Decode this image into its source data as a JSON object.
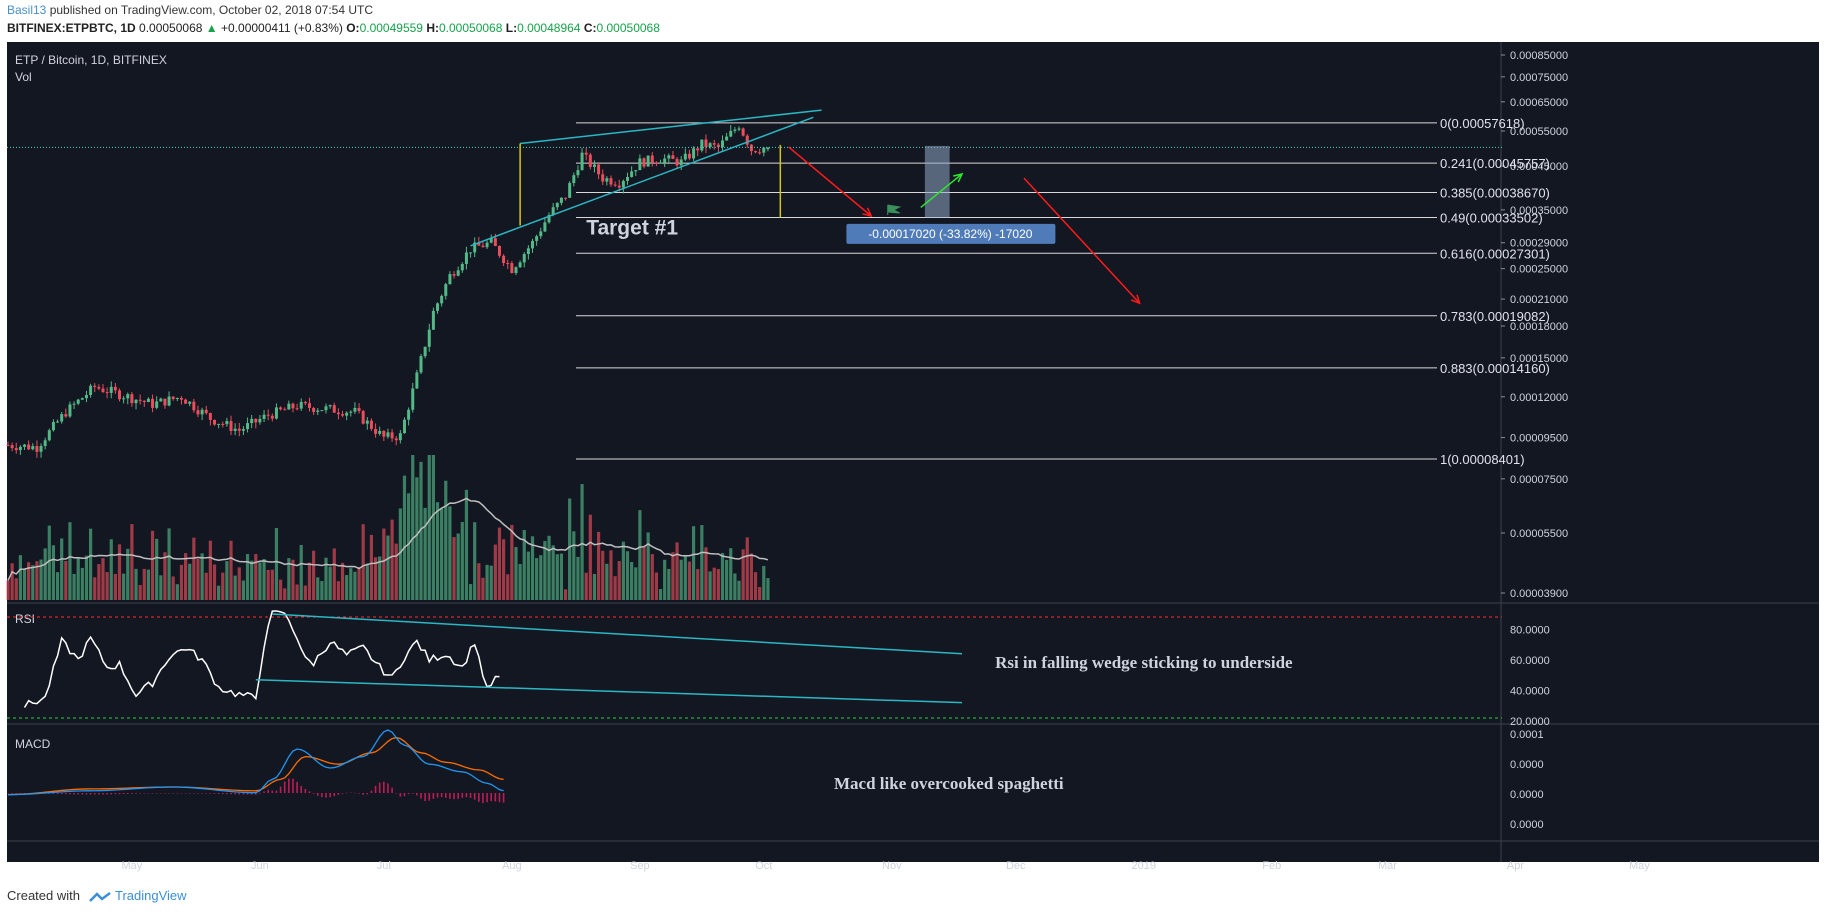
{
  "header": {
    "user": "Basil13",
    "published_text": " published on TradingView.com, October 02, 2018 07:54 UTC",
    "symbol": "BITFINEX:ETPBTC, 1D",
    "price": "0.00050068",
    "change_arrow": "▲",
    "change": "+0.00000411 (+0.83%)",
    "o_label": "O:",
    "o_value": "0.00049559",
    "h_label": "H:",
    "h_value": "0.00050068",
    "l_label": "L:",
    "l_value": "0.00048964",
    "c_label": "C:",
    "c_value": "0.00050068"
  },
  "footer": {
    "created_with": "Created with",
    "brand": "TradingView"
  },
  "colors": {
    "background": "#131722",
    "up": "#53b987",
    "down": "#eb4d5c",
    "wedge": "#2ab7c4",
    "fib": "#d9d9d9",
    "rsi": "#ffffff",
    "macd": "#2196f3",
    "signal": "#ff6d00",
    "projection": "#8fa8c4",
    "arrow_down": "#ff1a1a",
    "arrow_up": "#2ee82e",
    "target_line": "#d6c319"
  },
  "chart_data": [
    {
      "type": "candlestick",
      "title": "ETP / Bitcoin, 1D, BITFINEX",
      "volume_label": "Vol",
      "ylabels": [
        "0.00085000",
        "0.00075000",
        "0.00065000",
        "0.00055000",
        "0.00045000",
        "0.00035000",
        "0.00029000",
        "0.00025000",
        "0.00021000",
        "0.00018000",
        "0.00015000",
        "0.00012000",
        "0.00009500",
        "0.00007500",
        "0.00005500",
        "0.00003900"
      ],
      "xlabels": [
        "May",
        "Jun",
        "Jul",
        "Aug",
        "Sep",
        "Oct",
        "Nov",
        "Dec",
        "2019",
        "Feb",
        "Mar",
        "Apr",
        "May"
      ],
      "close_path": [
        [
          "2018-04-01",
          9.1e-05
        ],
        [
          "2018-04-08",
          9e-05
        ],
        [
          "2018-04-15",
          0.00011
        ],
        [
          "2018-04-22",
          0.000127
        ],
        [
          "2018-04-29",
          0.000121
        ],
        [
          "2018-05-06",
          0.000115
        ],
        [
          "2018-05-13",
          0.00012
        ],
        [
          "2018-05-20",
          0.000106
        ],
        [
          "2018-05-27",
          9.9e-05
        ],
        [
          "2018-06-03",
          0.000108
        ],
        [
          "2018-06-10",
          0.000114
        ],
        [
          "2018-06-17",
          0.000112
        ],
        [
          "2018-06-24",
          0.00011
        ],
        [
          "2018-07-01",
          9.5e-05
        ],
        [
          "2018-07-05",
          9.6e-05
        ],
        [
          "2018-07-09",
          0.000135
        ],
        [
          "2018-07-13",
          0.000195
        ],
        [
          "2018-07-17",
          0.00024
        ],
        [
          "2018-07-22",
          0.00028
        ],
        [
          "2018-07-27",
          0.00029
        ],
        [
          "2018-08-01",
          0.00025
        ],
        [
          "2018-08-06",
          0.00029
        ],
        [
          "2018-08-10",
          0.00034
        ],
        [
          "2018-08-14",
          0.00038
        ],
        [
          "2018-08-18",
          0.00048
        ],
        [
          "2018-08-23",
          0.00042
        ],
        [
          "2018-08-27",
          0.00041
        ],
        [
          "2018-09-01",
          0.00046
        ],
        [
          "2018-09-06",
          0.00047
        ],
        [
          "2018-09-11",
          0.00046
        ],
        [
          "2018-09-16",
          0.00051
        ],
        [
          "2018-09-20",
          0.0005
        ],
        [
          "2018-09-25",
          0.00057
        ],
        [
          "2018-09-28",
          0.000495
        ],
        [
          "2018-10-02",
          0.000501
        ]
      ],
      "last_price": 0.00050068,
      "fibonacci": [
        {
          "level": "0",
          "label": "0(0.00057618)",
          "price": 0.00057618
        },
        {
          "level": "0.241",
          "label": "0.241(0.00045757)",
          "price": 0.00045757
        },
        {
          "level": "0.385",
          "label": "0.385(0.00038670)",
          "price": 0.0003867
        },
        {
          "level": "0.49",
          "label": "0.49(0.00033502)",
          "price": 0.00033502
        },
        {
          "level": "0.616",
          "label": "0.616(0.00027301)",
          "price": 0.00027301
        },
        {
          "level": "0.783",
          "label": "0.783(0.00019082)",
          "price": 0.00019082
        },
        {
          "level": "0.883",
          "label": "0.883(0.00014160)",
          "price": 0.0001416
        },
        {
          "level": "1",
          "label": "1(0.00008401)",
          "price": 8.401e-05
        }
      ],
      "annotations": {
        "target": "Target #1",
        "measure": "-0.00017020 (-33.82%) -17020"
      }
    },
    {
      "type": "line",
      "title": "RSI",
      "ylabels": [
        "80.0000",
        "60.0000",
        "40.0000",
        "20.0000"
      ],
      "ylim": [
        20,
        90
      ],
      "overbought": 88,
      "oversold": 22,
      "values": [
        [
          4,
          30
        ],
        [
          9,
          35
        ],
        [
          13,
          72
        ],
        [
          17,
          60
        ],
        [
          20,
          74
        ],
        [
          24,
          55
        ],
        [
          27,
          57
        ],
        [
          31,
          37
        ],
        [
          35,
          45
        ],
        [
          39,
          62
        ],
        [
          43,
          68
        ],
        [
          47,
          60
        ],
        [
          51,
          42
        ],
        [
          55,
          38
        ],
        [
          60,
          35
        ],
        [
          62,
          70
        ],
        [
          64,
          90
        ],
        [
          66,
          92
        ],
        [
          68,
          86
        ],
        [
          70,
          75
        ],
        [
          72,
          60
        ],
        [
          74,
          58
        ],
        [
          78,
          72
        ],
        [
          82,
          63
        ],
        [
          86,
          68
        ],
        [
          90,
          55
        ],
        [
          93,
          48
        ],
        [
          96,
          62
        ],
        [
          99,
          72
        ],
        [
          102,
          60
        ],
        [
          106,
          64
        ],
        [
          110,
          55
        ],
        [
          113,
          72
        ],
        [
          116,
          40
        ],
        [
          118,
          48
        ],
        [
          120,
          46
        ]
      ],
      "annotation": "Rsi in falling wedge sticking to underside"
    },
    {
      "type": "line",
      "title": "MACD",
      "ylabels": [
        "0.0001",
        "0.0000",
        "0.0000",
        "0.0000"
      ],
      "series": [
        {
          "values": [
            [
              0,
              -4
            ],
            [
              20,
              -2
            ],
            [
              40,
              0
            ],
            [
              60,
              -3
            ],
            [
              64,
              4
            ],
            [
              70,
              20
            ],
            [
              78,
              10
            ],
            [
              86,
              16
            ],
            [
              92,
              30
            ],
            [
              96,
              22
            ],
            [
              102,
              12
            ],
            [
              110,
              8
            ],
            [
              116,
              2
            ],
            [
              120,
              -2
            ]
          ]
        },
        {
          "values": [
            [
              0,
              -4
            ],
            [
              20,
              -1
            ],
            [
              40,
              0
            ],
            [
              60,
              -2
            ],
            [
              66,
              4
            ],
            [
              72,
              16
            ],
            [
              80,
              12
            ],
            [
              88,
              18
            ],
            [
              94,
              26
            ],
            [
              100,
              18
            ],
            [
              106,
              13
            ],
            [
              114,
              9
            ],
            [
              120,
              4
            ]
          ]
        }
      ],
      "annotation": "Macd like overcooked spaghetti"
    }
  ]
}
